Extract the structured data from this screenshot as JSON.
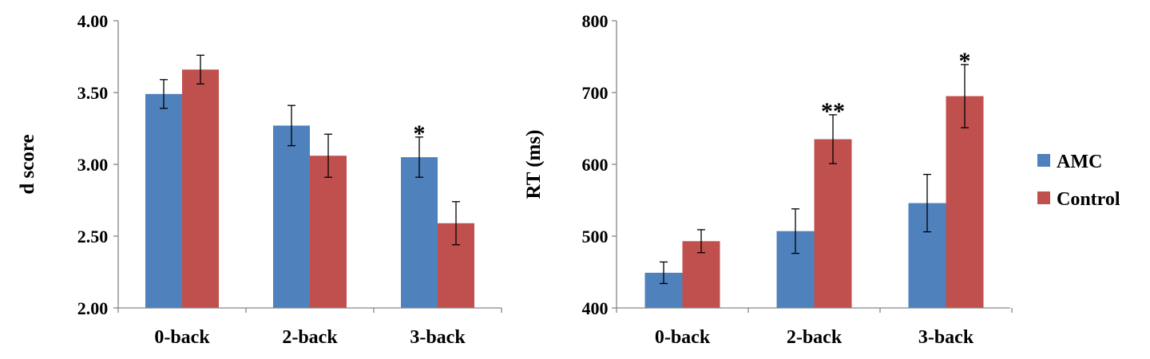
{
  "legend": [
    {
      "name": "AMC",
      "color": "#4f81bd"
    },
    {
      "name": "Control",
      "color": "#c0504d"
    }
  ],
  "chart_data": [
    {
      "type": "bar",
      "categories": [
        "0-back",
        "2-back",
        "3-back"
      ],
      "ylabel": "d score",
      "ylim": [
        2.0,
        4.0
      ],
      "yticks": [
        2.0,
        2.5,
        3.0,
        3.5,
        4.0
      ],
      "ytick_labels": [
        "2.00",
        "2.50",
        "3.00",
        "3.50",
        "4.00"
      ],
      "grid": false,
      "series": [
        {
          "name": "AMC",
          "color": "#4f81bd",
          "values": [
            3.49,
            3.27,
            3.05
          ],
          "error": [
            0.1,
            0.14,
            0.14
          ]
        },
        {
          "name": "Control",
          "color": "#c0504d",
          "values": [
            3.66,
            3.06,
            2.59
          ],
          "error": [
            0.1,
            0.15,
            0.15
          ]
        }
      ],
      "annotations": [
        {
          "category": "3-back",
          "series": "AMC",
          "text": "*"
        }
      ]
    },
    {
      "type": "bar",
      "categories": [
        "0-back",
        "2-back",
        "3-back"
      ],
      "ylabel": "RT (ms)",
      "ylim": [
        400,
        800
      ],
      "yticks": [
        400,
        500,
        600,
        700,
        800
      ],
      "ytick_labels": [
        "400",
        "500",
        "600",
        "700",
        "800"
      ],
      "grid": false,
      "legend_position": "right",
      "series": [
        {
          "name": "AMC",
          "color": "#4f81bd",
          "values": [
            449,
            507,
            546
          ],
          "error": [
            15,
            31,
            40
          ]
        },
        {
          "name": "Control",
          "color": "#c0504d",
          "values": [
            493,
            635,
            695
          ],
          "error": [
            16,
            34,
            44
          ]
        }
      ],
      "annotations": [
        {
          "category": "2-back",
          "series": "Control",
          "text": "**"
        },
        {
          "category": "3-back",
          "series": "Control",
          "text": "*"
        }
      ]
    }
  ]
}
